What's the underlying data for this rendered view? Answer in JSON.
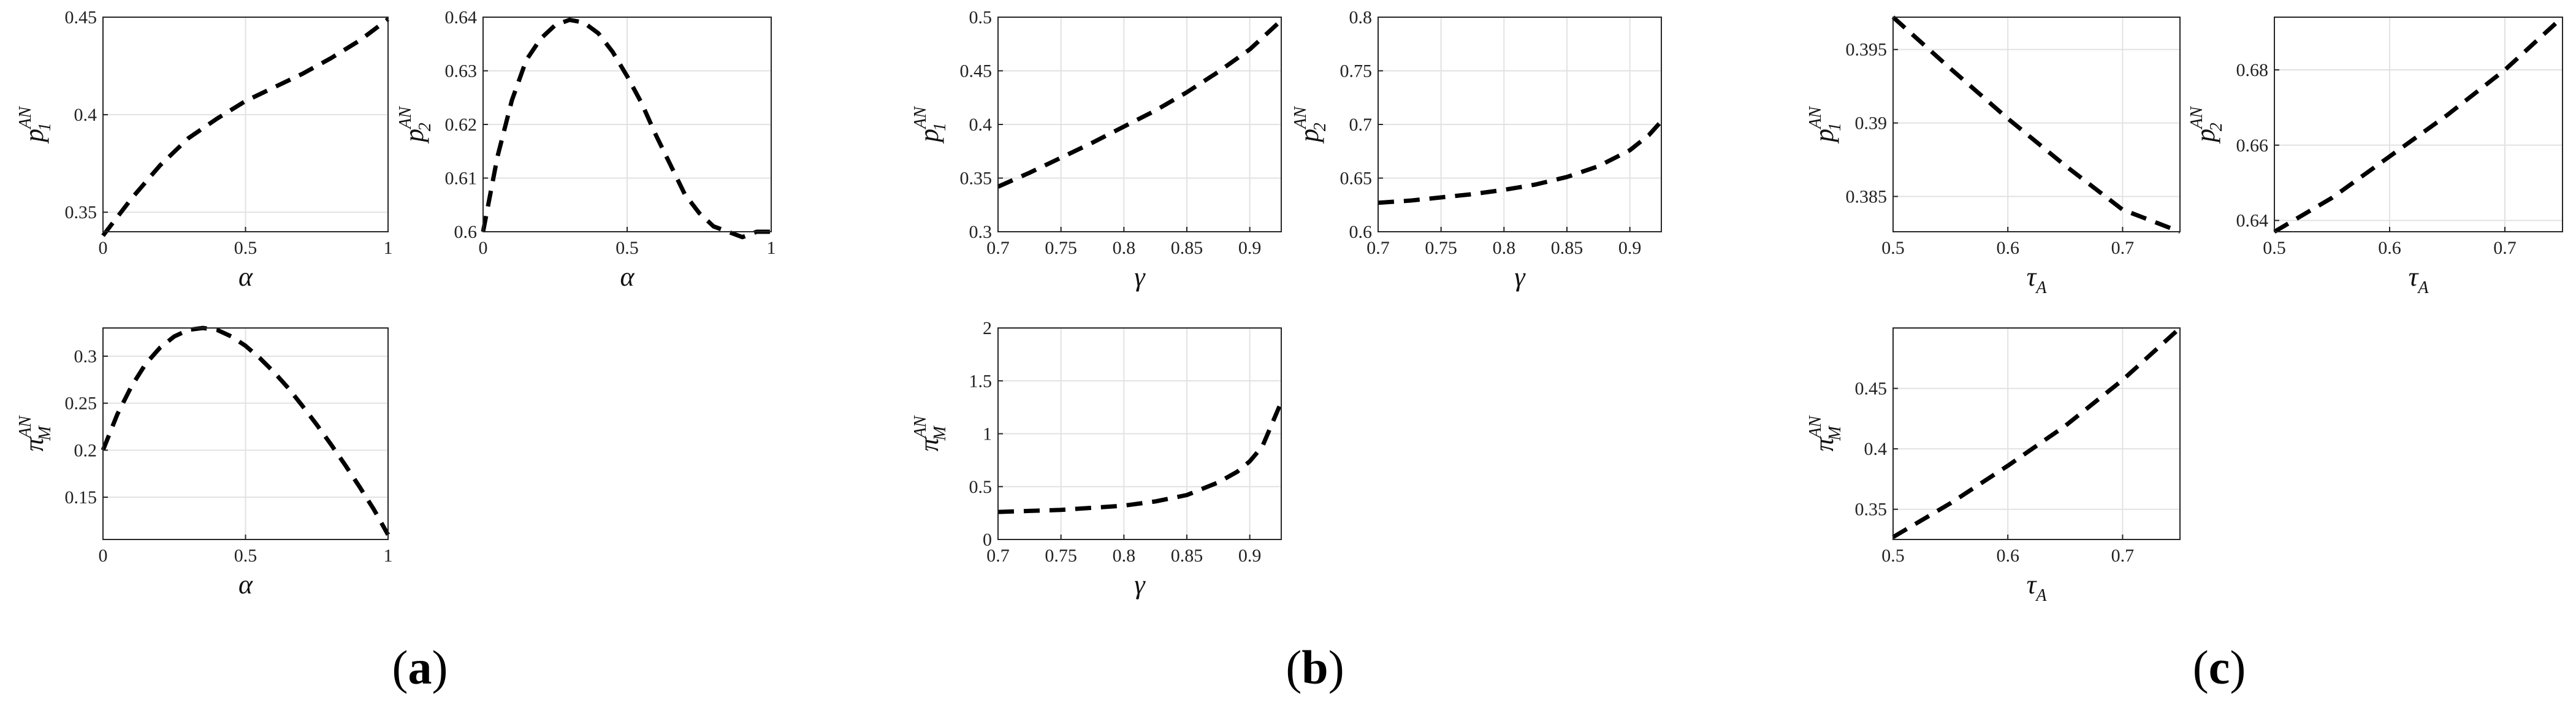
{
  "panel_labels": [
    {
      "open": "(",
      "letter": "a",
      "close": ")"
    },
    {
      "open": "(",
      "letter": "b",
      "close": ")"
    },
    {
      "open": "(",
      "letter": "c",
      "close": ")"
    }
  ],
  "chart_data": [
    {
      "type": "line",
      "group": "a",
      "xlabel": {
        "base": "α"
      },
      "ylabel": {
        "base": "p",
        "sub": "1",
        "sup": "AN"
      },
      "xlim": [
        0,
        1
      ],
      "ylim": [
        0.34,
        0.45
      ],
      "xticks": [
        0,
        0.5,
        1
      ],
      "xtick_labels": [
        "0",
        "0.5",
        "1"
      ],
      "yticks": [
        0.35,
        0.4,
        0.45
      ],
      "ytick_labels": [
        "0.35",
        "0.4",
        "0.45"
      ],
      "grid": true,
      "line_style": "dashed",
      "color": "#000000",
      "x": [
        0,
        0.1,
        0.2,
        0.3,
        0.4,
        0.5,
        0.6,
        0.7,
        0.8,
        0.9,
        1.0
      ],
      "y": [
        0.338,
        0.357,
        0.374,
        0.388,
        0.398,
        0.407,
        0.414,
        0.421,
        0.429,
        0.438,
        0.449
      ]
    },
    {
      "type": "line",
      "group": "a",
      "xlabel": {
        "base": "α"
      },
      "ylabel": {
        "base": "p",
        "sub": "2",
        "sup": "AN"
      },
      "xlim": [
        0,
        1
      ],
      "ylim": [
        0.6,
        0.64
      ],
      "xticks": [
        0,
        0.5,
        1
      ],
      "xtick_labels": [
        "0",
        "0.5",
        "1"
      ],
      "yticks": [
        0.6,
        0.61,
        0.62,
        0.63,
        0.64
      ],
      "ytick_labels": [
        "0.6",
        "0.61",
        "0.62",
        "0.63",
        "0.64"
      ],
      "grid": true,
      "line_style": "dashed",
      "color": "#000000",
      "x": [
        0,
        0.05,
        0.1,
        0.15,
        0.2,
        0.25,
        0.3,
        0.35,
        0.4,
        0.45,
        0.5,
        0.55,
        0.6,
        0.65,
        0.7,
        0.75,
        0.8,
        0.85,
        0.9,
        0.95,
        1.0
      ],
      "y": [
        0.6,
        0.614,
        0.6245,
        0.632,
        0.636,
        0.6385,
        0.6395,
        0.639,
        0.637,
        0.6335,
        0.629,
        0.624,
        0.618,
        0.6125,
        0.607,
        0.6035,
        0.601,
        0.6,
        0.599,
        0.6,
        0.6
      ]
    },
    {
      "type": "line",
      "group": "a",
      "xlabel": {
        "base": "α"
      },
      "ylabel": {
        "base": "π",
        "sub": "M",
        "sup": "AN"
      },
      "xlim": [
        0,
        1
      ],
      "ylim": [
        0.105,
        0.33
      ],
      "xticks": [
        0,
        0.5,
        1
      ],
      "xtick_labels": [
        "0",
        "0.5",
        "1"
      ],
      "yticks": [
        0.15,
        0.2,
        0.25,
        0.3
      ],
      "ytick_labels": [
        "0.15",
        "0.2",
        "0.25",
        "0.3"
      ],
      "grid": true,
      "line_style": "dashed",
      "color": "#000000",
      "x": [
        0,
        0.05,
        0.1,
        0.15,
        0.2,
        0.25,
        0.3,
        0.35,
        0.4,
        0.45,
        0.5,
        0.55,
        0.6,
        0.65,
        0.7,
        0.75,
        0.8,
        0.85,
        0.9,
        0.95,
        1.0
      ],
      "y": [
        0.2,
        0.238,
        0.268,
        0.292,
        0.309,
        0.321,
        0.328,
        0.33,
        0.328,
        0.321,
        0.311,
        0.298,
        0.283,
        0.266,
        0.247,
        0.227,
        0.206,
        0.184,
        0.161,
        0.137,
        0.11
      ]
    },
    {
      "type": "line",
      "group": "b",
      "xlabel": {
        "base": "γ"
      },
      "ylabel": {
        "base": "p",
        "sub": "1",
        "sup": "AN"
      },
      "xlim": [
        0.7,
        0.925
      ],
      "ylim": [
        0.3,
        0.5
      ],
      "xticks": [
        0.7,
        0.75,
        0.8,
        0.85,
        0.9
      ],
      "xtick_labels": [
        "0.7",
        "0.75",
        "0.8",
        "0.85",
        "0.9"
      ],
      "yticks": [
        0.3,
        0.35,
        0.4,
        0.45,
        0.5
      ],
      "ytick_labels": [
        "0.3",
        "0.35",
        "0.4",
        "0.45",
        "0.5"
      ],
      "grid": true,
      "line_style": "dashed",
      "color": "#000000",
      "x": [
        0.7,
        0.725,
        0.75,
        0.775,
        0.8,
        0.825,
        0.85,
        0.875,
        0.9,
        0.925
      ],
      "y": [
        0.342,
        0.355,
        0.369,
        0.383,
        0.398,
        0.413,
        0.43,
        0.449,
        0.47,
        0.497
      ]
    },
    {
      "type": "line",
      "group": "b",
      "xlabel": {
        "base": "γ"
      },
      "ylabel": {
        "base": "p",
        "sub": "2",
        "sup": "AN"
      },
      "xlim": [
        0.7,
        0.925
      ],
      "ylim": [
        0.6,
        0.8
      ],
      "xticks": [
        0.7,
        0.75,
        0.8,
        0.85,
        0.9
      ],
      "xtick_labels": [
        "0.7",
        "0.75",
        "0.8",
        "0.85",
        "0.9"
      ],
      "yticks": [
        0.6,
        0.65,
        0.7,
        0.75,
        0.8
      ],
      "ytick_labels": [
        "0.6",
        "0.65",
        "0.7",
        "0.75",
        "0.8"
      ],
      "grid": true,
      "line_style": "dashed",
      "color": "#000000",
      "x": [
        0.7,
        0.725,
        0.75,
        0.775,
        0.8,
        0.825,
        0.85,
        0.875,
        0.9,
        0.915,
        0.925
      ],
      "y": [
        0.627,
        0.629,
        0.632,
        0.635,
        0.639,
        0.644,
        0.651,
        0.661,
        0.676,
        0.69,
        0.703
      ]
    },
    {
      "type": "line",
      "group": "b",
      "xlabel": {
        "base": "γ"
      },
      "ylabel": {
        "base": "π",
        "sub": "M",
        "sup": "AN"
      },
      "xlim": [
        0.7,
        0.925
      ],
      "ylim": [
        0,
        2
      ],
      "xticks": [
        0.7,
        0.75,
        0.8,
        0.85,
        0.9
      ],
      "xtick_labels": [
        "0.7",
        "0.75",
        "0.8",
        "0.85",
        "0.9"
      ],
      "yticks": [
        0,
        0.5,
        1,
        1.5,
        2
      ],
      "ytick_labels": [
        "0",
        "0.5",
        "1",
        "1.5",
        "2"
      ],
      "grid": true,
      "line_style": "dashed",
      "color": "#000000",
      "x": [
        0.7,
        0.725,
        0.75,
        0.775,
        0.8,
        0.825,
        0.85,
        0.875,
        0.89,
        0.9,
        0.91,
        0.925
      ],
      "y": [
        0.26,
        0.27,
        0.28,
        0.3,
        0.32,
        0.36,
        0.42,
        0.54,
        0.64,
        0.74,
        0.88,
        1.3
      ]
    },
    {
      "type": "line",
      "group": "c",
      "xlabel": {
        "base": "τ",
        "sub": "A"
      },
      "ylabel": {
        "base": "p",
        "sub": "1",
        "sup": "AN"
      },
      "xlim": [
        0.5,
        0.75
      ],
      "ylim": [
        0.3826,
        0.3972
      ],
      "xticks": [
        0.5,
        0.6,
        0.7
      ],
      "xtick_labels": [
        "0.5",
        "0.6",
        "0.7"
      ],
      "yticks": [
        0.385,
        0.39,
        0.395
      ],
      "ytick_labels": [
        "0.385",
        "0.39",
        "0.395"
      ],
      "grid": true,
      "line_style": "dashed",
      "color": "#000000",
      "x": [
        0.5,
        0.55,
        0.6,
        0.65,
        0.7,
        0.75
      ],
      "y": [
        0.3972,
        0.3937,
        0.3903,
        0.3871,
        0.3841,
        0.3826
      ]
    },
    {
      "type": "line",
      "group": "c",
      "xlabel": {
        "base": "τ",
        "sub": "A"
      },
      "ylabel": {
        "base": "p",
        "sub": "2",
        "sup": "AN"
      },
      "xlim": [
        0.5,
        0.75
      ],
      "ylim": [
        0.637,
        0.694
      ],
      "xticks": [
        0.5,
        0.6,
        0.7
      ],
      "xtick_labels": [
        "0.5",
        "0.6",
        "0.7"
      ],
      "yticks": [
        0.64,
        0.66,
        0.68
      ],
      "ytick_labels": [
        "0.64",
        "0.66",
        "0.68"
      ],
      "grid": true,
      "line_style": "dashed",
      "color": "#000000",
      "x": [
        0.5,
        0.55,
        0.6,
        0.65,
        0.7,
        0.75
      ],
      "y": [
        0.637,
        0.646,
        0.657,
        0.668,
        0.68,
        0.694
      ]
    },
    {
      "type": "line",
      "group": "c",
      "xlabel": {
        "base": "τ",
        "sub": "A"
      },
      "ylabel": {
        "base": "π",
        "sub": "M",
        "sup": "AN"
      },
      "xlim": [
        0.5,
        0.75
      ],
      "ylim": [
        0.325,
        0.5
      ],
      "xticks": [
        0.5,
        0.6,
        0.7
      ],
      "xtick_labels": [
        "0.5",
        "0.6",
        "0.7"
      ],
      "yticks": [
        0.35,
        0.4,
        0.45
      ],
      "ytick_labels": [
        "0.35",
        "0.4",
        "0.45"
      ],
      "grid": true,
      "line_style": "dashed",
      "color": "#000000",
      "x": [
        0.5,
        0.55,
        0.6,
        0.65,
        0.7,
        0.75
      ],
      "y": [
        0.327,
        0.355,
        0.386,
        0.419,
        0.457,
        0.5
      ]
    }
  ]
}
